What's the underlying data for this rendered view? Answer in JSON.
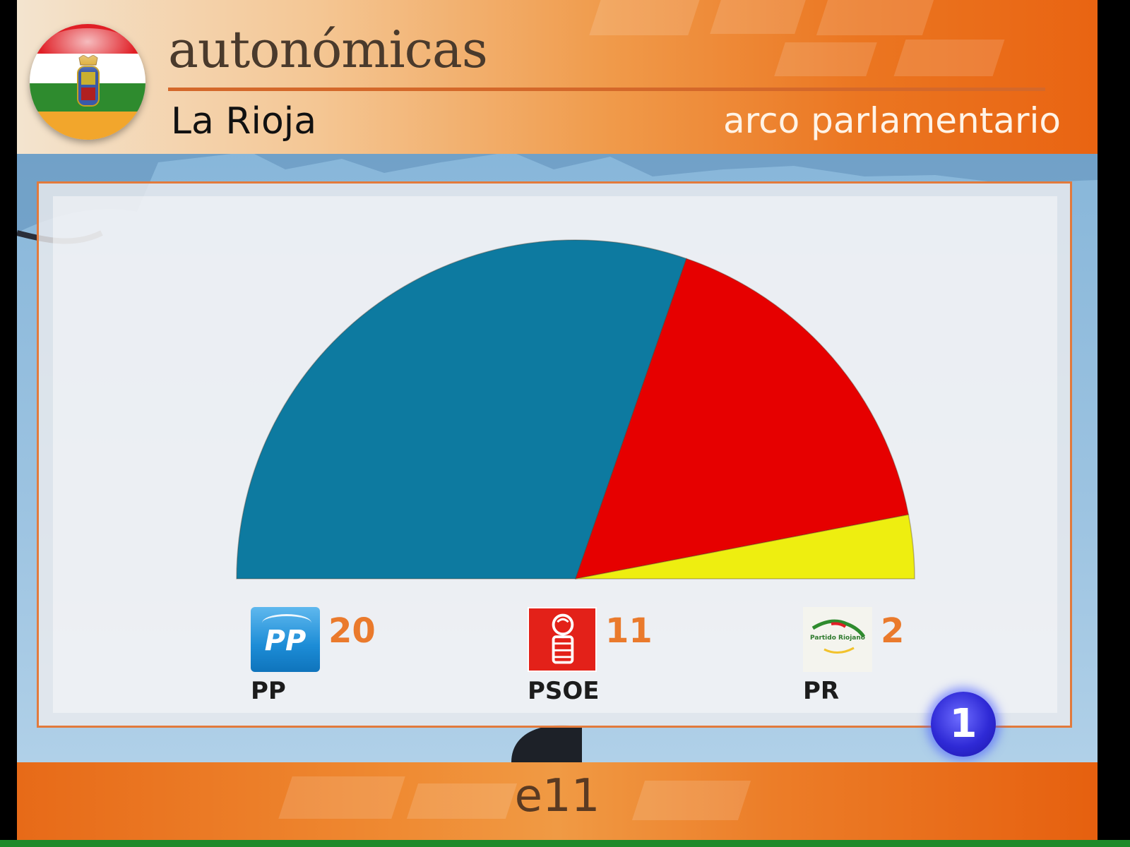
{
  "header": {
    "title": "autonómicas",
    "region": "La Rioja",
    "section": "arco parlamentario"
  },
  "colors": {
    "header_orange": "#eb7621",
    "rule": "#d4682a",
    "seats_orange": "#ea7a2c",
    "flag_red": "#e01f26",
    "flag_white": "#ffffff",
    "flag_green": "#2e8b2e",
    "flag_yellow": "#f2c22c"
  },
  "icons": {
    "flag": "la-rioja-flag-sphere",
    "channel": "tve-la1-logo"
  },
  "chart_data": {
    "type": "pie",
    "shape": "semicircle",
    "total_seats": 33,
    "parties": [
      {
        "name": "PP",
        "seats": 20,
        "color": "#0d7aa0"
      },
      {
        "name": "PSOE",
        "seats": 11,
        "color": "#e60000"
      },
      {
        "name": "PR",
        "seats": 2,
        "color": "#eeee10"
      }
    ]
  },
  "legend": [
    {
      "name": "PP",
      "seats": "20",
      "logo_text": "PP"
    },
    {
      "name": "PSOE",
      "seats": "11",
      "logo_text": ""
    },
    {
      "name": "PR",
      "seats": "2",
      "logo_text": "Partido Riojano"
    }
  ],
  "channel_badge": "1",
  "footer": {
    "text": "e11"
  }
}
